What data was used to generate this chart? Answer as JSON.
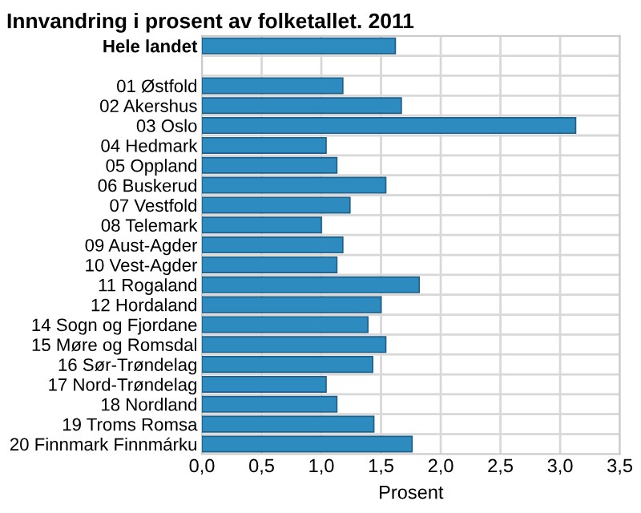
{
  "chart_data": {
    "type": "bar",
    "orientation": "horizontal",
    "title": "Innvandring i prosent av folketallet. 2011",
    "xlabel": "Prosent",
    "categories": [
      "Hele landet",
      null,
      "01 Østfold",
      "02 Akershus",
      "03 Oslo",
      "04 Hedmark",
      "05 Oppland",
      "06 Buskerud",
      "07 Vestfold",
      "08 Telemark",
      "09 Aust-Agder",
      "10 Vest-Agder",
      "11 Rogaland",
      "12 Hordaland",
      "14 Sogn og Fjordane",
      "15 Møre og Romsdal",
      "16 Sør-Trøndelag",
      "17 Nord-Trøndelag",
      "18 Nordland",
      "19 Troms Romsa",
      "20 Finnmark Finnmárku"
    ],
    "values": [
      1.62,
      null,
      1.18,
      1.67,
      3.13,
      1.04,
      1.13,
      1.54,
      1.24,
      1.0,
      1.18,
      1.13,
      1.82,
      1.5,
      1.39,
      1.54,
      1.43,
      1.04,
      1.13,
      1.44,
      1.76
    ],
    "color": "#2e8bc0",
    "xlim": [
      0,
      3.5
    ],
    "xticks": [
      {
        "value": 0,
        "label": "0,0"
      },
      {
        "value": 0.5,
        "label": "0,5"
      },
      {
        "value": 1,
        "label": "1,0"
      },
      {
        "value": 1.5,
        "label": "1,5"
      },
      {
        "value": 2,
        "label": "2,0"
      },
      {
        "value": 2.5,
        "label": "2,5"
      },
      {
        "value": 3,
        "label": "3,0"
      },
      {
        "value": 3.5,
        "label": "3,5"
      }
    ],
    "grid": true
  }
}
